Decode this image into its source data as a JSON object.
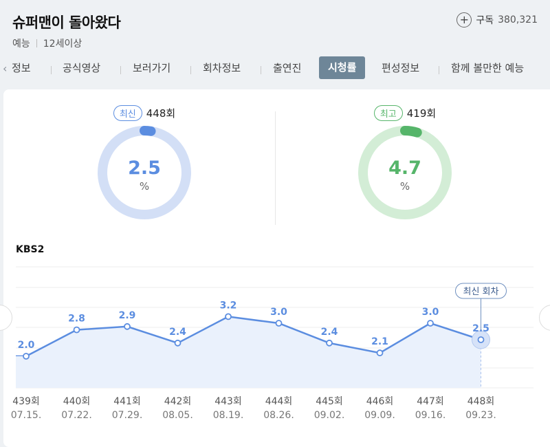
{
  "program": {
    "title": "슈퍼맨이 돌아왔다",
    "genre": "예능",
    "age_rating": "12세이상",
    "subscribe_label": "구독",
    "subscriber_count": "380,321"
  },
  "tabs": [
    {
      "label": "정보"
    },
    {
      "label": "공식영상"
    },
    {
      "label": "보러가기"
    },
    {
      "label": "회차정보"
    },
    {
      "label": "출연진"
    },
    {
      "label": "시청률",
      "active": true
    },
    {
      "label": "편성정보"
    },
    {
      "label": "함께 볼만한 예능"
    }
  ],
  "stats": {
    "latest": {
      "badge": "최신",
      "episode": "448회",
      "value": "2.5",
      "unit": "%",
      "fraction": 0.025
    },
    "best": {
      "badge": "최고",
      "episode": "419회",
      "value": "4.7",
      "unit": "%",
      "fraction": 0.047
    }
  },
  "colors": {
    "blue": "#5b8de0",
    "blue_light": "#d3dff6",
    "green": "#56b56a",
    "green_light": "#d3edd6"
  },
  "network": "KBS2",
  "latest_marker": "최신 회차",
  "chart_data": {
    "type": "line",
    "series": [
      {
        "values": [
          2.0,
          2.8,
          2.9,
          2.4,
          3.2,
          3.0,
          2.4,
          2.1,
          3.0,
          2.5
        ]
      }
    ],
    "categories": [
      "439회",
      "440회",
      "441회",
      "442회",
      "443회",
      "444회",
      "445회",
      "446회",
      "447회",
      "448회"
    ],
    "dates": [
      "07.15.",
      "07.22.",
      "07.29.",
      "08.05.",
      "08.19.",
      "08.26.",
      "09.02.",
      "09.09.",
      "09.16.",
      "09.23."
    ],
    "ylim": [
      0,
      5
    ],
    "grid": true
  }
}
